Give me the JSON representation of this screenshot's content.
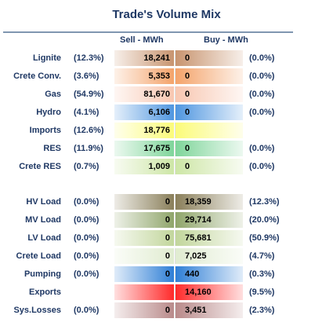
{
  "title": "Trade's Volume Mix",
  "headers": {
    "sell": "Sell - MWh",
    "buy": "Buy - MWh"
  },
  "top_rows": [
    {
      "label": "Lignite",
      "sell_pct": "(12.3%)",
      "sell": "18,241",
      "buy": "0",
      "buy_pct": "(0.0%)",
      "sell_color": "#c8946f",
      "buy_color": "#c8946f"
    },
    {
      "label": "Crete Conv.",
      "sell_pct": "(3.6%)",
      "sell": "5,353",
      "buy": "0",
      "buy_pct": "(0.0%)",
      "sell_color": "#f4a36a",
      "buy_color": "#f4a36a"
    },
    {
      "label": "Gas",
      "sell_pct": "(54.9%)",
      "sell": "81,670",
      "buy": "0",
      "buy_pct": "(0.0%)",
      "sell_color": "#f8c7b1",
      "buy_color": "#f8c7b1"
    },
    {
      "label": "Hydro",
      "sell_pct": "(4.1%)",
      "sell": "6,106",
      "buy": "0",
      "buy_pct": "(0.0%)",
      "sell_color": "#4f96e0",
      "buy_color": "#4f96e0"
    },
    {
      "label": "Imports",
      "sell_pct": "(12.6%)",
      "sell": "18,776",
      "buy": "",
      "buy_pct": "",
      "sell_color": "#fbfb7a",
      "buy_color": "#fbfb7a"
    },
    {
      "label": "RES",
      "sell_pct": "(11.9%)",
      "sell": "17,675",
      "buy": "0",
      "buy_pct": "(0.0%)",
      "sell_color": "#7fd59a",
      "buy_color": "#7fd59a"
    },
    {
      "label": "Crete RES",
      "sell_pct": "(0.7%)",
      "sell": "1,009",
      "buy": "0",
      "buy_pct": "(0.0%)",
      "sell_color": "#cde6a6",
      "buy_color": "#cde6a6"
    }
  ],
  "bottom_rows": [
    {
      "label": "HV Load",
      "sell_pct": "(0.0%)",
      "sell": "0",
      "buy": "18,359",
      "buy_pct": "(12.3%)",
      "sell_color": "#8a7f5a",
      "buy_color": "#8a7f5a"
    },
    {
      "label": "MV Load",
      "sell_pct": "(0.0%)",
      "sell": "0",
      "buy": "29,714",
      "buy_pct": "(20.0%)",
      "sell_color": "#8fa56a",
      "buy_color": "#8fa56a"
    },
    {
      "label": "LV Load",
      "sell_pct": "(0.0%)",
      "sell": "0",
      "buy": "75,681",
      "buy_pct": "(50.9%)",
      "sell_color": "#c2d69c",
      "buy_color": "#c2d69c"
    },
    {
      "label": "Crete Load",
      "sell_pct": "(0.0%)",
      "sell": "0",
      "buy": "7,025",
      "buy_pct": "(4.7%)",
      "sell_color": "#e0ecd0",
      "buy_color": "#e0ecd0"
    },
    {
      "label": "Pumping",
      "sell_pct": "(0.0%)",
      "sell": "0",
      "buy": "440",
      "buy_pct": "(0.3%)",
      "sell_color": "#2f7fd6",
      "buy_color": "#2f7fd6"
    },
    {
      "label": "Exports",
      "sell_pct": "",
      "sell": "",
      "buy": "14,160",
      "buy_pct": "(9.5%)",
      "sell_color": "#ff2a2a",
      "buy_color": "#ff2a2a"
    },
    {
      "label": "Sys.Losses",
      "sell_pct": "(0.0%)",
      "sell": "0",
      "buy": "3,451",
      "buy_pct": "(2.3%)",
      "sell_color": "#b98a8a",
      "buy_color": "#b98a8a"
    }
  ]
}
